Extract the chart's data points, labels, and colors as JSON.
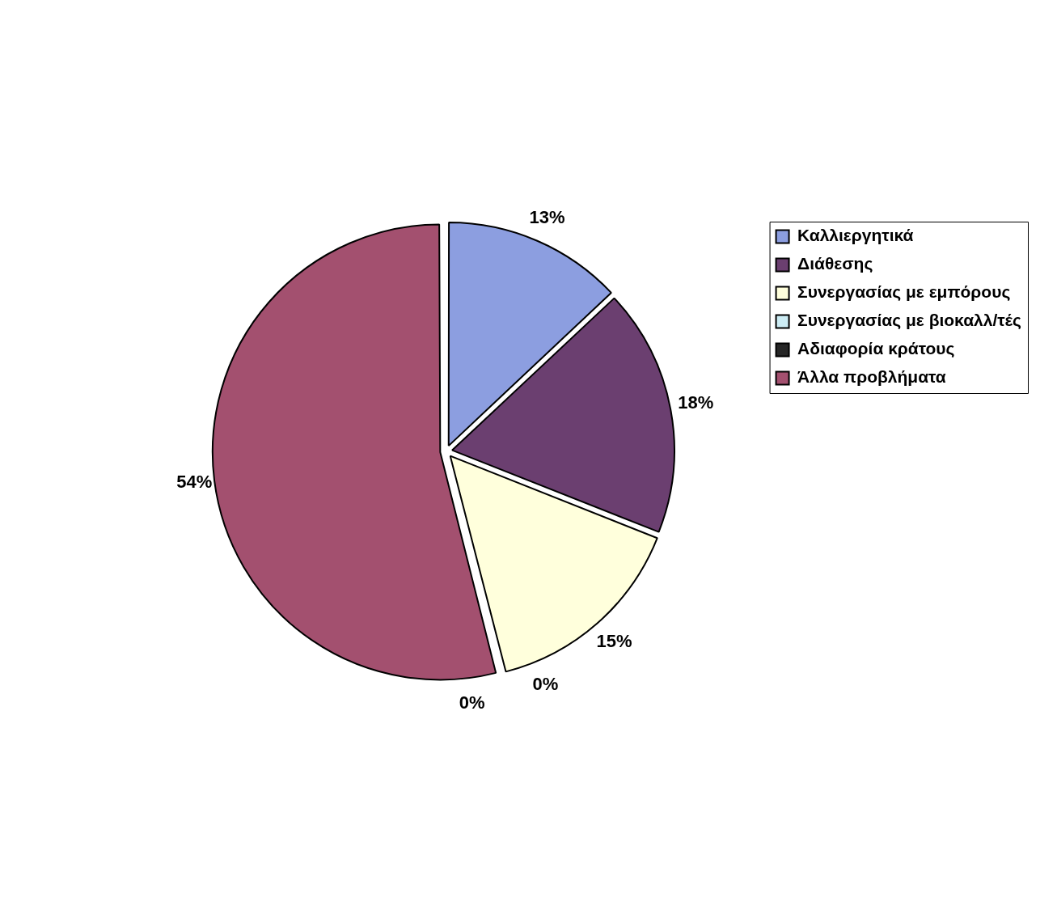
{
  "chart_data": {
    "type": "pie",
    "categories": [
      "Καλλιεργητικά",
      "Διάθεσης",
      "Συνεργασίας με εμπόρους",
      "Συνεργασίας με βιοκαλλ/τές",
      "Αδιαφορία κράτους",
      "Άλλα προβλήματα"
    ],
    "values": [
      13,
      18,
      15,
      0,
      0,
      54
    ],
    "colors": [
      "#8c9ee0",
      "#6b3f70",
      "#ffffdc",
      "#ccecf4",
      "#262626",
      "#a3506f"
    ],
    "value_labels": [
      "13%",
      "18%",
      "15%",
      "0%",
      "0%",
      "54%"
    ],
    "legend": "right"
  }
}
